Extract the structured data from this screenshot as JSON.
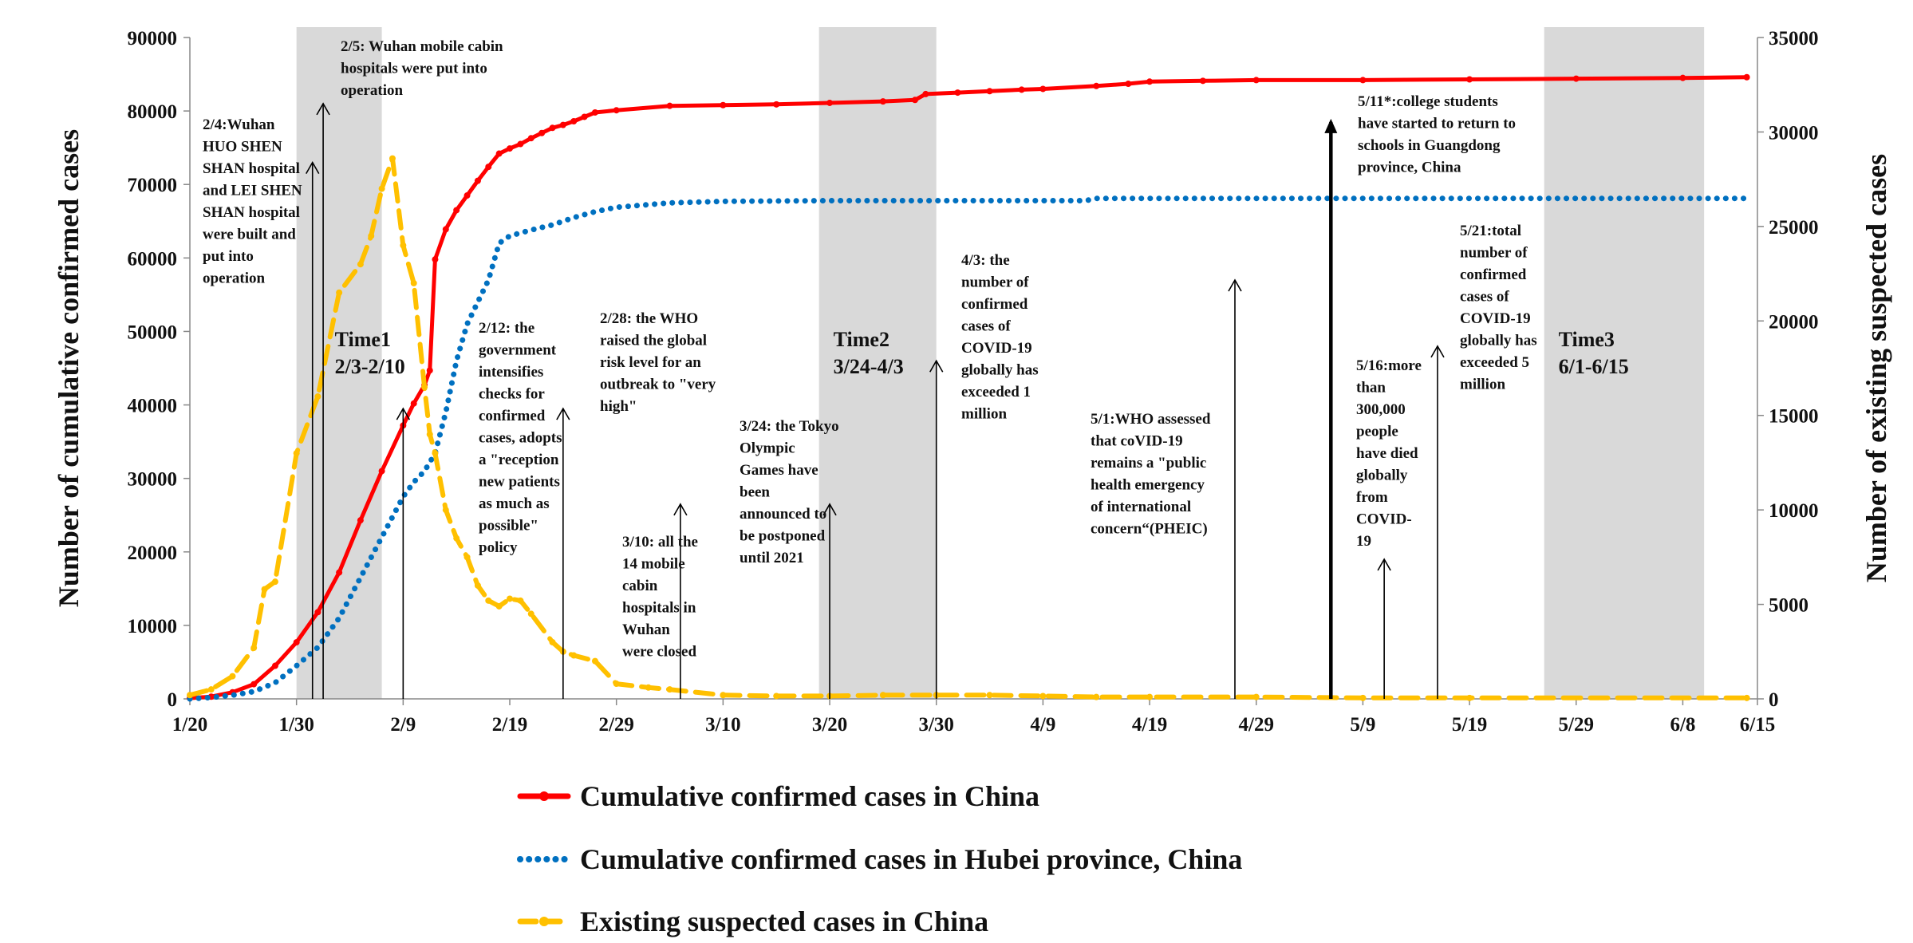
{
  "chart_data": {
    "type": "line",
    "title": "",
    "ylabel_left": "Number of cumulative confirmed cases",
    "ylabel_right": "Number of existing suspected cases",
    "ylim_left": [
      0,
      90000
    ],
    "yticks_left": [
      0,
      10000,
      20000,
      30000,
      40000,
      50000,
      60000,
      70000,
      80000,
      90000
    ],
    "ylim_right": [
      0,
      35000
    ],
    "yticks_right": [
      0,
      5000,
      10000,
      15000,
      20000,
      25000,
      30000,
      35000
    ],
    "xlim": [
      0,
      147
    ],
    "x_tick_labels": [
      {
        "label": "1/20",
        "x": 0
      },
      {
        "label": "1/30",
        "x": 10
      },
      {
        "label": "2/9",
        "x": 20
      },
      {
        "label": "2/19",
        "x": 30
      },
      {
        "label": "2/29",
        "x": 40
      },
      {
        "label": "3/10",
        "x": 50
      },
      {
        "label": "3/20",
        "x": 60
      },
      {
        "label": "3/30",
        "x": 70
      },
      {
        "label": "4/9",
        "x": 80
      },
      {
        "label": "4/19",
        "x": 90
      },
      {
        "label": "4/29",
        "x": 100
      },
      {
        "label": "5/9",
        "x": 110
      },
      {
        "label": "5/19",
        "x": 120
      },
      {
        "label": "5/29",
        "x": 130
      },
      {
        "label": "6/8",
        "x": 140
      },
      {
        "label": "6/15",
        "x": 147
      }
    ],
    "legend_position": "bottom",
    "series": [
      {
        "name": "Cumulative confirmed cases in China",
        "axis": "left",
        "color": "#ff0000",
        "style": "solid-dot",
        "points": [
          [
            0,
            100
          ],
          [
            2,
            300
          ],
          [
            4,
            900
          ],
          [
            6,
            2000
          ],
          [
            8,
            4500
          ],
          [
            10,
            7700
          ],
          [
            12,
            11800
          ],
          [
            14,
            17200
          ],
          [
            16,
            24300
          ],
          [
            18,
            31000
          ],
          [
            20,
            37200
          ],
          [
            21,
            40200
          ],
          [
            22,
            42700
          ],
          [
            22.5,
            44700
          ],
          [
            23,
            59800
          ],
          [
            24,
            63900
          ],
          [
            25,
            66500
          ],
          [
            26,
            68500
          ],
          [
            27,
            70500
          ],
          [
            28,
            72400
          ],
          [
            29,
            74200
          ],
          [
            30,
            74900
          ],
          [
            31,
            75500
          ],
          [
            32,
            76300
          ],
          [
            33,
            77000
          ],
          [
            34,
            77700
          ],
          [
            35,
            78100
          ],
          [
            36,
            78600
          ],
          [
            37,
            79200
          ],
          [
            38,
            79800
          ],
          [
            40,
            80100
          ],
          [
            45,
            80700
          ],
          [
            50,
            80800
          ],
          [
            55,
            80900
          ],
          [
            60,
            81100
          ],
          [
            65,
            81300
          ],
          [
            68,
            81500
          ],
          [
            69,
            82300
          ],
          [
            72,
            82500
          ],
          [
            75,
            82700
          ],
          [
            78,
            82900
          ],
          [
            80,
            83000
          ],
          [
            85,
            83400
          ],
          [
            88,
            83700
          ],
          [
            90,
            84000
          ],
          [
            95,
            84100
          ],
          [
            100,
            84200
          ],
          [
            110,
            84200
          ],
          [
            120,
            84300
          ],
          [
            130,
            84400
          ],
          [
            140,
            84500
          ],
          [
            146,
            84600
          ]
        ]
      },
      {
        "name": "Cumulative confirmed cases in Hubei province, China",
        "axis": "left",
        "color": "#0070c0",
        "style": "dotted",
        "points": [
          [
            0,
            0
          ],
          [
            2,
            200
          ],
          [
            4,
            500
          ],
          [
            6,
            1000
          ],
          [
            8,
            2200
          ],
          [
            10,
            4500
          ],
          [
            12,
            7000
          ],
          [
            14,
            11000
          ],
          [
            16,
            16500
          ],
          [
            18,
            22000
          ],
          [
            20,
            27500
          ],
          [
            21,
            29500
          ],
          [
            22,
            31000
          ],
          [
            23,
            33400
          ],
          [
            24,
            39000
          ],
          [
            25,
            46000
          ],
          [
            26,
            51000
          ],
          [
            27,
            54000
          ],
          [
            28,
            57000
          ],
          [
            29,
            62000
          ],
          [
            30,
            63000
          ],
          [
            32,
            63800
          ],
          [
            34,
            64500
          ],
          [
            36,
            65500
          ],
          [
            38,
            66300
          ],
          [
            40,
            66900
          ],
          [
            45,
            67500
          ],
          [
            50,
            67700
          ],
          [
            60,
            67800
          ],
          [
            70,
            67800
          ],
          [
            80,
            67800
          ],
          [
            84,
            67800
          ],
          [
            85,
            68100
          ],
          [
            95,
            68100
          ],
          [
            110,
            68100
          ],
          [
            130,
            68100
          ],
          [
            146,
            68100
          ]
        ]
      },
      {
        "name": "Existing suspected cases in China",
        "axis": "right",
        "color": "#ffc000",
        "style": "dashed-dot",
        "points": [
          [
            0,
            200
          ],
          [
            2,
            500
          ],
          [
            4,
            1200
          ],
          [
            6,
            2700
          ],
          [
            7,
            5800
          ],
          [
            8,
            6200
          ],
          [
            10,
            13000
          ],
          [
            12,
            16000
          ],
          [
            14,
            21500
          ],
          [
            16,
            23000
          ],
          [
            17,
            24500
          ],
          [
            18,
            27000
          ],
          [
            19,
            28600
          ],
          [
            20,
            24000
          ],
          [
            21,
            22000
          ],
          [
            22,
            16500
          ],
          [
            22.5,
            14000
          ],
          [
            23,
            13000
          ],
          [
            24,
            10000
          ],
          [
            25,
            8500
          ],
          [
            26,
            7500
          ],
          [
            27,
            6000
          ],
          [
            28,
            5200
          ],
          [
            29,
            4900
          ],
          [
            30,
            5300
          ],
          [
            31,
            5200
          ],
          [
            32,
            4500
          ],
          [
            34,
            3000
          ],
          [
            35,
            2500
          ],
          [
            36,
            2300
          ],
          [
            38,
            2000
          ],
          [
            40,
            800
          ],
          [
            43,
            600
          ],
          [
            45,
            500
          ],
          [
            50,
            200
          ],
          [
            55,
            150
          ],
          [
            60,
            150
          ],
          [
            65,
            200
          ],
          [
            70,
            200
          ],
          [
            75,
            200
          ],
          [
            80,
            150
          ],
          [
            85,
            100
          ],
          [
            90,
            100
          ],
          [
            100,
            100
          ],
          [
            110,
            50
          ],
          [
            120,
            50
          ],
          [
            146,
            50
          ]
        ]
      }
    ],
    "shaded_periods": [
      {
        "label": "Time1",
        "range": "2/3-2/10",
        "x": [
          10,
          18
        ]
      },
      {
        "label": "Time2",
        "range": "3/24-4/3",
        "x": [
          59,
          70
        ]
      },
      {
        "label": "Time3",
        "range": "6/1-6/15",
        "x": [
          127,
          142
        ]
      }
    ],
    "annotations": [
      {
        "x": 11.5,
        "arrow_top": 73000,
        "bold": false,
        "lines": [
          "2/4:Wuhan",
          "HUO SHEN",
          "SHAN hospital",
          "and LEI SHEN",
          "SHAN hospital",
          "were built and",
          "put into",
          "operation"
        ]
      },
      {
        "x": 12.5,
        "arrow_top": 81000,
        "bold": false,
        "lines": [
          "2/5: Wuhan mobile cabin",
          "hospitals were put into",
          "operation"
        ]
      },
      {
        "x": 20,
        "arrow_top": 39500,
        "bold": false,
        "lines": []
      },
      {
        "x": 35,
        "arrow_top": 39500,
        "bold": false,
        "lines": [
          "2/12: the",
          "government",
          "intensifies",
          "checks for",
          "confirmed",
          "cases, adopts",
          "a \"reception",
          "new patients",
          "as much  as",
          "possible\"",
          "policy"
        ]
      },
      {
        "x": 46,
        "arrow_top": 26500,
        "bold": false,
        "lines": [
          "2/28: the WHO",
          "raised the global",
          "risk level for an",
          "outbreak to \"very",
          "high\""
        ]
      },
      {
        "x": 46,
        "arrow_top": null,
        "bold": false,
        "lines": [
          "3/10: all the",
          "14 mobile",
          "cabin",
          "hospitals in",
          "Wuhan",
          "were closed"
        ]
      },
      {
        "x": 60,
        "arrow_top": 26500,
        "bold": false,
        "lines": [
          "3/24: the Tokyo",
          "Olympic",
          "Games have",
          "been",
          "announced to",
          "be postponed",
          "until 2021"
        ]
      },
      {
        "x": 70,
        "arrow_top": 46000,
        "bold": false,
        "lines": [
          "4/3: the",
          "number of",
          "confirmed",
          "cases of",
          "COVID-19",
          "globally has",
          "exceeded 1",
          "million"
        ]
      },
      {
        "x": 98,
        "arrow_top": 57000,
        "bold": false,
        "lines": [
          "5/1:WHO assessed",
          "that coVID-19",
          "remains a \"public",
          "health emergency",
          "of international",
          "concern“(PHEIC)"
        ]
      },
      {
        "x": 107,
        "arrow_top": 78500,
        "bold": true,
        "lines": [
          "5/11*:college students",
          "have started to return to",
          "schools in Guangdong",
          "province, China"
        ]
      },
      {
        "x": 112,
        "arrow_top": 19000,
        "bold": false,
        "lines": [
          "5/16:more",
          "than",
          "300,000",
          "people",
          "have died",
          "globally",
          "from",
          "COVID-",
          "19"
        ]
      },
      {
        "x": 117,
        "arrow_top": 48000,
        "bold": false,
        "lines": [
          "5/21:total",
          "number of",
          "confirmed",
          "cases of",
          "COVID-19",
          "globally has",
          "exceeded 5",
          "million"
        ]
      }
    ]
  }
}
